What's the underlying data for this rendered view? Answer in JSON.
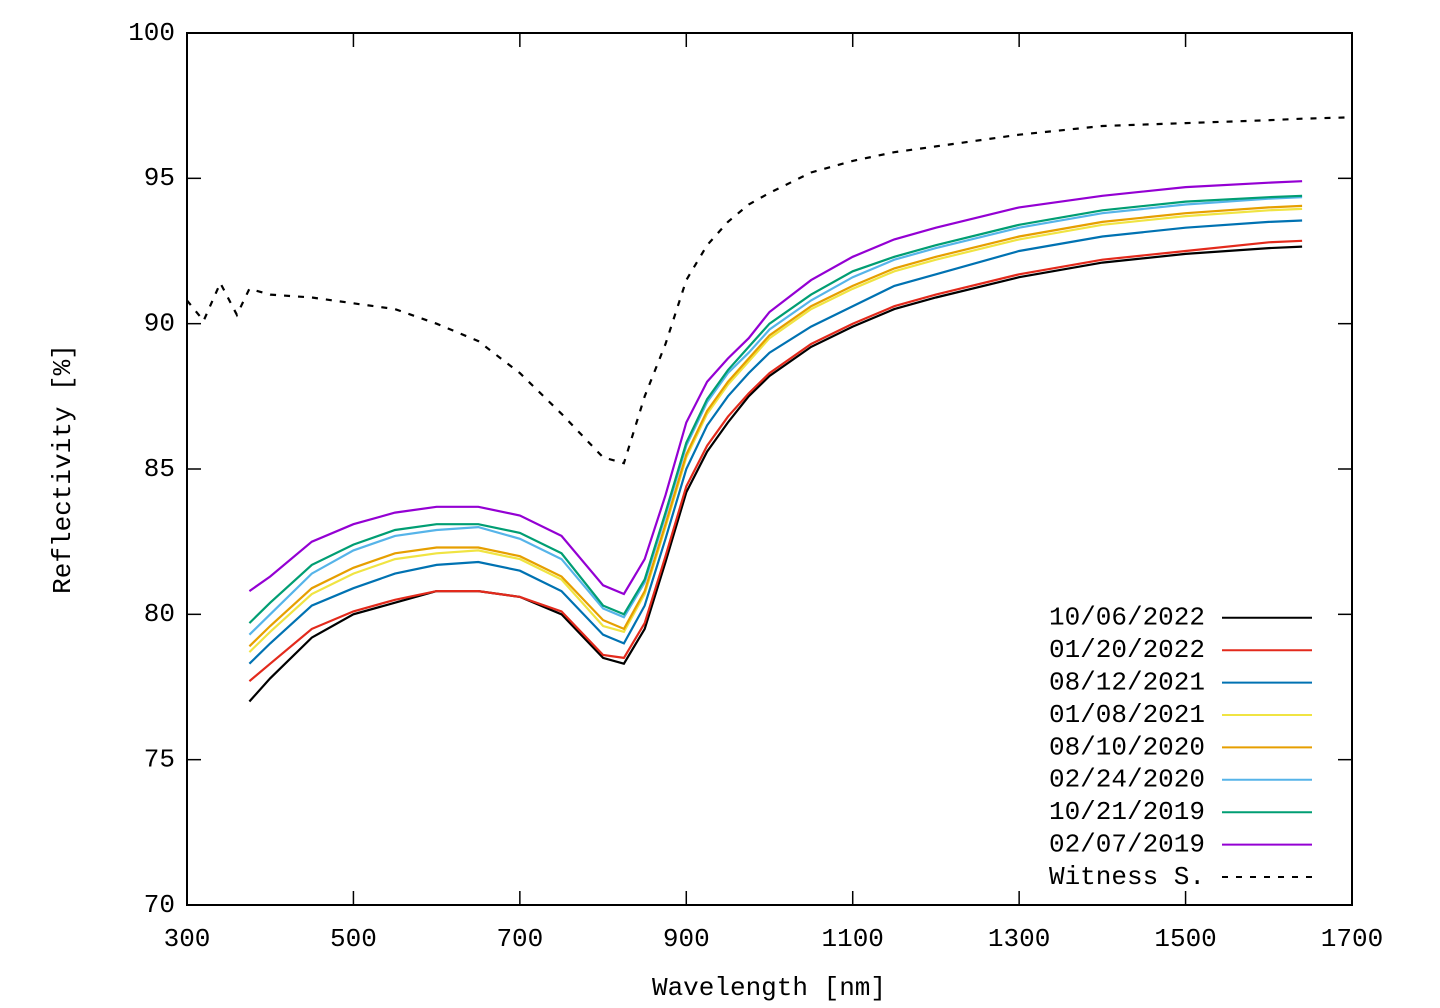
{
  "chart_data": {
    "type": "line",
    "xlabel": "Wavelength [nm]",
    "ylabel": "Reflectivity [%]",
    "x": [
      300,
      320,
      340,
      360,
      375,
      400,
      450,
      500,
      550,
      600,
      650,
      700,
      750,
      800,
      825,
      850,
      875,
      900,
      925,
      950,
      975,
      1000,
      1050,
      1100,
      1150,
      1200,
      1300,
      1400,
      1500,
      1600,
      1640,
      1700
    ],
    "xlim": [
      300,
      1700
    ],
    "xticks": [
      300,
      500,
      700,
      900,
      1100,
      1300,
      1500,
      1700
    ],
    "ylim": [
      70,
      100
    ],
    "yticks": [
      70,
      75,
      80,
      85,
      90,
      95,
      100
    ],
    "legend": "bottom right",
    "series": [
      {
        "name": "10/06/2022",
        "color": "#000000",
        "values": [
          null,
          null,
          null,
          null,
          77.0,
          77.8,
          79.2,
          80.0,
          80.4,
          80.8,
          80.8,
          80.6,
          80.0,
          78.5,
          78.3,
          79.5,
          81.8,
          84.2,
          85.6,
          86.6,
          87.5,
          88.2,
          89.2,
          89.9,
          90.5,
          90.9,
          91.6,
          92.1,
          92.4,
          92.6,
          92.65,
          null
        ]
      },
      {
        "name": "01/20/2022",
        "color": "#e32a1c",
        "values": [
          null,
          null,
          null,
          null,
          77.7,
          78.3,
          79.5,
          80.1,
          80.5,
          80.8,
          80.8,
          80.6,
          80.1,
          78.6,
          78.5,
          79.7,
          82.0,
          84.4,
          85.8,
          86.8,
          87.6,
          88.3,
          89.3,
          90.0,
          90.6,
          91.0,
          91.7,
          92.2,
          92.5,
          92.8,
          92.85,
          null
        ]
      },
      {
        "name": "08/12/2021",
        "color": "#0072b2",
        "values": [
          null,
          null,
          null,
          null,
          78.3,
          79.0,
          80.3,
          80.9,
          81.4,
          81.7,
          81.8,
          81.5,
          80.8,
          79.3,
          79.0,
          80.3,
          82.6,
          85.0,
          86.5,
          87.5,
          88.3,
          89.0,
          89.9,
          90.6,
          91.3,
          91.7,
          92.5,
          93.0,
          93.3,
          93.5,
          93.55,
          null
        ]
      },
      {
        "name": "01/08/2021",
        "color": "#f0e442",
        "values": [
          null,
          null,
          null,
          null,
          78.7,
          79.4,
          80.7,
          81.4,
          81.9,
          82.1,
          82.2,
          81.9,
          81.2,
          79.6,
          79.4,
          80.7,
          83.0,
          85.4,
          86.9,
          87.9,
          88.7,
          89.5,
          90.5,
          91.2,
          91.8,
          92.2,
          92.9,
          93.4,
          93.7,
          93.9,
          93.95,
          null
        ]
      },
      {
        "name": "08/10/2020",
        "color": "#e69f00",
        "values": [
          null,
          null,
          null,
          null,
          78.9,
          79.6,
          80.9,
          81.6,
          82.1,
          82.3,
          82.3,
          82.0,
          81.3,
          79.8,
          79.5,
          80.8,
          83.1,
          85.5,
          87.0,
          88.0,
          88.8,
          89.6,
          90.6,
          91.3,
          91.9,
          92.3,
          93.0,
          93.5,
          93.8,
          94.0,
          94.05,
          null
        ]
      },
      {
        "name": "02/24/2020",
        "color": "#56b4e9",
        "values": [
          null,
          null,
          null,
          null,
          79.3,
          80.0,
          81.4,
          82.2,
          82.7,
          82.9,
          83.0,
          82.6,
          81.9,
          80.2,
          79.9,
          81.1,
          83.4,
          85.8,
          87.3,
          88.3,
          89.0,
          89.8,
          90.8,
          91.6,
          92.2,
          92.6,
          93.3,
          93.8,
          94.1,
          94.3,
          94.35,
          null
        ]
      },
      {
        "name": "10/21/2019",
        "color": "#009e73",
        "values": [
          null,
          null,
          null,
          null,
          79.7,
          80.4,
          81.7,
          82.4,
          82.9,
          83.1,
          83.1,
          82.8,
          82.1,
          80.3,
          80.0,
          81.2,
          83.5,
          85.9,
          87.4,
          88.4,
          89.2,
          90.0,
          91.0,
          91.8,
          92.3,
          92.7,
          93.4,
          93.9,
          94.2,
          94.35,
          94.4,
          null
        ]
      },
      {
        "name": "02/07/2019",
        "color": "#9400d3",
        "values": [
          null,
          null,
          null,
          null,
          80.8,
          81.3,
          82.5,
          83.1,
          83.5,
          83.7,
          83.7,
          83.4,
          82.7,
          81.0,
          80.7,
          81.9,
          84.1,
          86.6,
          88.0,
          88.8,
          89.5,
          90.4,
          91.5,
          92.3,
          92.9,
          93.3,
          94.0,
          94.4,
          94.7,
          94.85,
          94.9,
          null
        ]
      },
      {
        "name": "Witness S.",
        "color": "#000000",
        "dash": "dashed",
        "values": [
          90.8,
          90.1,
          91.4,
          90.3,
          91.2,
          91.0,
          90.9,
          90.7,
          90.5,
          90.0,
          89.4,
          88.3,
          86.9,
          85.4,
          85.2,
          87.5,
          89.3,
          91.5,
          92.7,
          93.5,
          94.1,
          94.5,
          95.2,
          95.6,
          95.9,
          96.1,
          96.5,
          96.8,
          96.9,
          97.0,
          97.05,
          97.1
        ]
      }
    ]
  }
}
